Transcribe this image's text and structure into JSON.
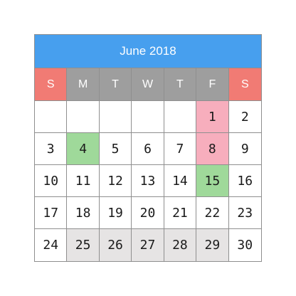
{
  "header": {
    "title": "June 2018"
  },
  "weekdays": [
    {
      "label": "S",
      "weekend": true
    },
    {
      "label": "M",
      "weekend": false
    },
    {
      "label": "T",
      "weekend": false
    },
    {
      "label": "W",
      "weekend": false
    },
    {
      "label": "T",
      "weekend": false
    },
    {
      "label": "F",
      "weekend": false
    },
    {
      "label": "S",
      "weekend": true
    }
  ],
  "weeks": [
    [
      {
        "label": "",
        "highlight": ""
      },
      {
        "label": "",
        "highlight": ""
      },
      {
        "label": "",
        "highlight": ""
      },
      {
        "label": "",
        "highlight": ""
      },
      {
        "label": "",
        "highlight": ""
      },
      {
        "label": "1",
        "highlight": "pink"
      },
      {
        "label": "2",
        "highlight": ""
      }
    ],
    [
      {
        "label": "3",
        "highlight": ""
      },
      {
        "label": "4",
        "highlight": "green"
      },
      {
        "label": "5",
        "highlight": ""
      },
      {
        "label": "6",
        "highlight": ""
      },
      {
        "label": "7",
        "highlight": ""
      },
      {
        "label": "8",
        "highlight": "pink"
      },
      {
        "label": "9",
        "highlight": ""
      }
    ],
    [
      {
        "label": "10",
        "highlight": ""
      },
      {
        "label": "11",
        "highlight": ""
      },
      {
        "label": "12",
        "highlight": ""
      },
      {
        "label": "13",
        "highlight": ""
      },
      {
        "label": "14",
        "highlight": ""
      },
      {
        "label": "15",
        "highlight": "green"
      },
      {
        "label": "16",
        "highlight": ""
      }
    ],
    [
      {
        "label": "17",
        "highlight": ""
      },
      {
        "label": "18",
        "highlight": ""
      },
      {
        "label": "19",
        "highlight": ""
      },
      {
        "label": "20",
        "highlight": ""
      },
      {
        "label": "21",
        "highlight": ""
      },
      {
        "label": "22",
        "highlight": ""
      },
      {
        "label": "23",
        "highlight": ""
      }
    ],
    [
      {
        "label": "24",
        "highlight": ""
      },
      {
        "label": "25",
        "highlight": "gray"
      },
      {
        "label": "26",
        "highlight": "gray"
      },
      {
        "label": "27",
        "highlight": "gray"
      },
      {
        "label": "28",
        "highlight": "gray"
      },
      {
        "label": "29",
        "highlight": "gray"
      },
      {
        "label": "30",
        "highlight": ""
      }
    ]
  ],
  "colors": {
    "header_bg": "#479fee",
    "weekend_header": "#f17b74",
    "weekday_header": "#9e9e9e",
    "pink": "#f7aebd",
    "green": "#9fd99a",
    "gray": "#e6e4e4"
  }
}
